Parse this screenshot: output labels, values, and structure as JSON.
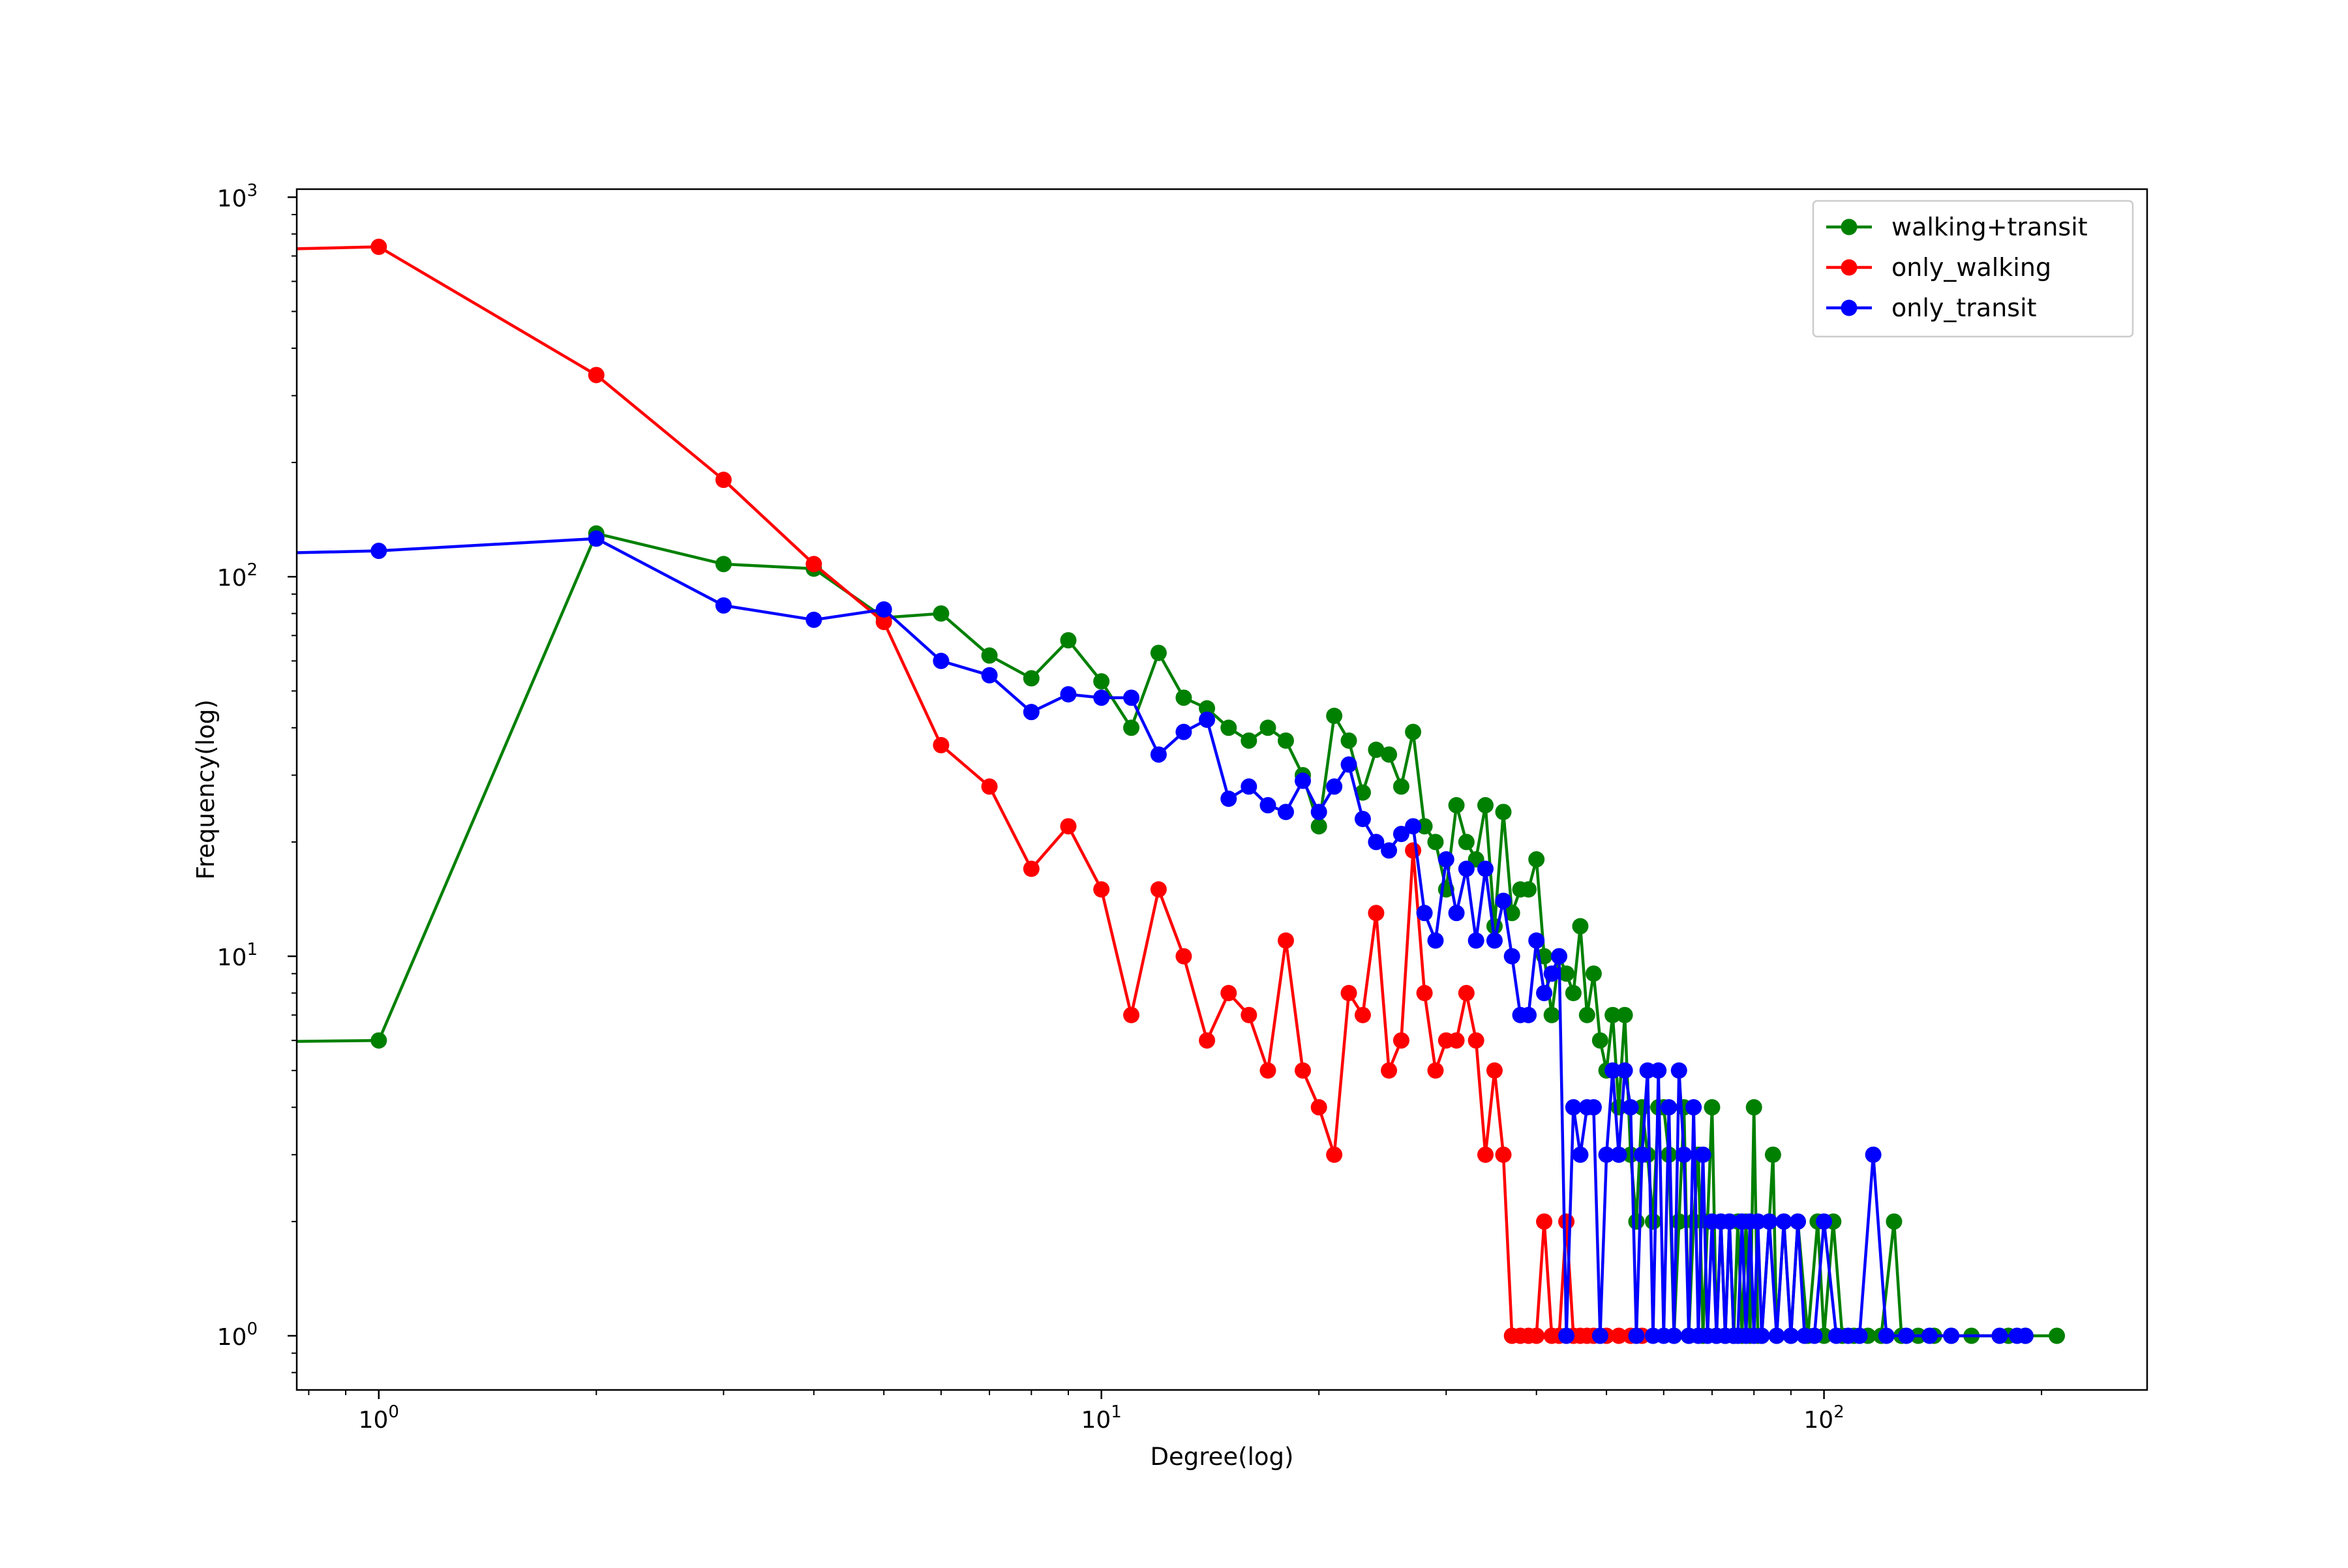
{
  "chart_data": {
    "type": "line",
    "title": "",
    "xlabel": "Degree(log)",
    "ylabel": "Frequency(log)",
    "xscale": "log",
    "yscale": "log",
    "xlim": [
      0.77,
      280
    ],
    "ylim": [
      0.72,
      1050
    ],
    "grid": false,
    "legend_position": "top-right",
    "x_ticks": [
      {
        "value": 1,
        "base": "10",
        "exp": "0"
      },
      {
        "value": 10,
        "base": "10",
        "exp": "1"
      },
      {
        "value": 100,
        "base": "10",
        "exp": "2"
      }
    ],
    "y_ticks": [
      {
        "value": 1,
        "base": "10",
        "exp": "0"
      },
      {
        "value": 10,
        "base": "10",
        "exp": "1"
      },
      {
        "value": 100,
        "base": "10",
        "exp": "2"
      },
      {
        "value": 1000,
        "base": "10",
        "exp": "3"
      }
    ],
    "series": [
      {
        "name": "walking+transit",
        "color": "#008000",
        "points": [
          [
            0,
            5
          ],
          [
            1,
            6
          ],
          [
            2,
            130
          ],
          [
            3,
            108
          ],
          [
            4,
            105
          ],
          [
            5,
            78
          ],
          [
            6,
            80
          ],
          [
            7,
            62
          ],
          [
            8,
            54
          ],
          [
            9,
            68
          ],
          [
            10,
            53
          ],
          [
            11,
            40
          ],
          [
            12,
            63
          ],
          [
            13,
            48
          ],
          [
            14,
            45
          ],
          [
            15,
            40
          ],
          [
            16,
            37
          ],
          [
            17,
            40
          ],
          [
            18,
            37
          ],
          [
            19,
            30
          ],
          [
            20,
            22
          ],
          [
            21,
            43
          ],
          [
            22,
            37
          ],
          [
            23,
            27
          ],
          [
            24,
            35
          ],
          [
            25,
            34
          ],
          [
            26,
            28
          ],
          [
            27,
            39
          ],
          [
            28,
            22
          ],
          [
            29,
            20
          ],
          [
            30,
            15
          ],
          [
            31,
            25
          ],
          [
            32,
            20
          ],
          [
            33,
            18
          ],
          [
            34,
            25
          ],
          [
            35,
            12
          ],
          [
            36,
            24
          ],
          [
            37,
            13
          ],
          [
            38,
            15
          ],
          [
            39,
            15
          ],
          [
            40,
            18
          ],
          [
            41,
            10
          ],
          [
            42,
            7
          ],
          [
            43,
            10
          ],
          [
            44,
            9
          ],
          [
            45,
            8
          ],
          [
            46,
            12
          ],
          [
            47,
            7
          ],
          [
            48,
            9
          ],
          [
            49,
            6
          ],
          [
            50,
            5
          ],
          [
            51,
            7
          ],
          [
            52,
            4
          ],
          [
            53,
            7
          ],
          [
            54,
            3
          ],
          [
            55,
            2
          ],
          [
            56,
            4
          ],
          [
            57,
            3
          ],
          [
            58,
            2
          ],
          [
            59,
            4
          ],
          [
            60,
            4
          ],
          [
            61,
            3
          ],
          [
            62,
            1
          ],
          [
            63,
            2
          ],
          [
            64,
            4
          ],
          [
            65,
            1
          ],
          [
            66,
            2
          ],
          [
            67,
            3
          ],
          [
            68,
            1
          ],
          [
            69,
            2
          ],
          [
            70,
            4
          ],
          [
            71,
            1
          ],
          [
            72,
            2
          ],
          [
            73,
            1
          ],
          [
            74,
            2
          ],
          [
            75,
            1
          ],
          [
            76,
            2
          ],
          [
            77,
            1
          ],
          [
            78,
            2
          ],
          [
            79,
            1
          ],
          [
            80,
            4
          ],
          [
            81,
            1
          ],
          [
            82,
            1
          ],
          [
            84,
            2
          ],
          [
            85,
            3
          ],
          [
            86,
            1
          ],
          [
            88,
            2
          ],
          [
            90,
            1
          ],
          [
            92,
            2
          ],
          [
            95,
            1
          ],
          [
            98,
            2
          ],
          [
            100,
            1
          ],
          [
            103,
            2
          ],
          [
            106,
            1
          ],
          [
            110,
            1
          ],
          [
            115,
            1
          ],
          [
            120,
            1
          ],
          [
            125,
            2
          ],
          [
            128,
            1
          ],
          [
            135,
            1
          ],
          [
            142,
            1
          ],
          [
            150,
            1
          ],
          [
            160,
            1
          ],
          [
            180,
            1
          ],
          [
            190,
            1
          ],
          [
            210,
            1
          ]
        ]
      },
      {
        "name": "only_walking",
        "color": "#ff0000",
        "points": [
          [
            0,
            500
          ],
          [
            1,
            740
          ],
          [
            2,
            340
          ],
          [
            3,
            180
          ],
          [
            4,
            108
          ],
          [
            5,
            76
          ],
          [
            6,
            36
          ],
          [
            7,
            28
          ],
          [
            8,
            17
          ],
          [
            9,
            22
          ],
          [
            10,
            15
          ],
          [
            11,
            7
          ],
          [
            12,
            15
          ],
          [
            13,
            10
          ],
          [
            14,
            6
          ],
          [
            15,
            8
          ],
          [
            16,
            7
          ],
          [
            17,
            5
          ],
          [
            18,
            11
          ],
          [
            19,
            5
          ],
          [
            20,
            4
          ],
          [
            21,
            3
          ],
          [
            22,
            8
          ],
          [
            23,
            7
          ],
          [
            24,
            13
          ],
          [
            25,
            5
          ],
          [
            26,
            6
          ],
          [
            27,
            19
          ],
          [
            28,
            8
          ],
          [
            29,
            5
          ],
          [
            30,
            6
          ],
          [
            31,
            6
          ],
          [
            32,
            8
          ],
          [
            33,
            6
          ],
          [
            34,
            3
          ],
          [
            35,
            5
          ],
          [
            36,
            3
          ],
          [
            37,
            1
          ],
          [
            38,
            1
          ],
          [
            39,
            1
          ],
          [
            40,
            1
          ],
          [
            41,
            2
          ],
          [
            42,
            1
          ],
          [
            43,
            1
          ],
          [
            44,
            2
          ],
          [
            45,
            1
          ],
          [
            46,
            1
          ],
          [
            47,
            1
          ],
          [
            48,
            1
          ],
          [
            50,
            1
          ],
          [
            52,
            1
          ],
          [
            54,
            1
          ],
          [
            56,
            1
          ]
        ]
      },
      {
        "name": "only_transit",
        "color": "#0000ff",
        "points": [
          [
            0,
            80
          ],
          [
            1,
            117
          ],
          [
            2,
            126
          ],
          [
            3,
            84
          ],
          [
            4,
            77
          ],
          [
            5,
            82
          ],
          [
            6,
            60
          ],
          [
            7,
            55
          ],
          [
            8,
            44
          ],
          [
            9,
            49
          ],
          [
            10,
            48
          ],
          [
            11,
            48
          ],
          [
            12,
            34
          ],
          [
            13,
            39
          ],
          [
            14,
            42
          ],
          [
            15,
            26
          ],
          [
            16,
            28
          ],
          [
            17,
            25
          ],
          [
            18,
            24
          ],
          [
            19,
            29
          ],
          [
            20,
            24
          ],
          [
            21,
            28
          ],
          [
            22,
            32
          ],
          [
            23,
            23
          ],
          [
            24,
            20
          ],
          [
            25,
            19
          ],
          [
            26,
            21
          ],
          [
            27,
            22
          ],
          [
            28,
            13
          ],
          [
            29,
            11
          ],
          [
            30,
            18
          ],
          [
            31,
            13
          ],
          [
            32,
            17
          ],
          [
            33,
            11
          ],
          [
            34,
            17
          ],
          [
            35,
            11
          ],
          [
            36,
            14
          ],
          [
            37,
            10
          ],
          [
            38,
            7
          ],
          [
            39,
            7
          ],
          [
            40,
            11
          ],
          [
            41,
            8
          ],
          [
            42,
            9
          ],
          [
            43,
            10
          ],
          [
            44,
            1
          ],
          [
            45,
            4
          ],
          [
            46,
            3
          ],
          [
            47,
            4
          ],
          [
            48,
            4
          ],
          [
            49,
            1
          ],
          [
            50,
            3
          ],
          [
            51,
            5
          ],
          [
            52,
            3
          ],
          [
            53,
            5
          ],
          [
            54,
            4
          ],
          [
            55,
            1
          ],
          [
            56,
            3
          ],
          [
            57,
            5
          ],
          [
            58,
            1
          ],
          [
            59,
            5
          ],
          [
            60,
            1
          ],
          [
            61,
            4
          ],
          [
            62,
            1
          ],
          [
            63,
            5
          ],
          [
            64,
            3
          ],
          [
            65,
            1
          ],
          [
            66,
            4
          ],
          [
            67,
            1
          ],
          [
            68,
            3
          ],
          [
            69,
            1
          ],
          [
            70,
            2
          ],
          [
            71,
            1
          ],
          [
            72,
            2
          ],
          [
            73,
            1
          ],
          [
            74,
            2
          ],
          [
            75,
            1
          ],
          [
            76,
            1
          ],
          [
            77,
            2
          ],
          [
            78,
            1
          ],
          [
            79,
            2
          ],
          [
            80,
            1
          ],
          [
            81,
            2
          ],
          [
            82,
            1
          ],
          [
            84,
            2
          ],
          [
            86,
            1
          ],
          [
            88,
            2
          ],
          [
            90,
            1
          ],
          [
            92,
            2
          ],
          [
            94,
            1
          ],
          [
            97,
            1
          ],
          [
            100,
            2
          ],
          [
            104,
            1
          ],
          [
            108,
            1
          ],
          [
            112,
            1
          ],
          [
            117,
            3
          ],
          [
            122,
            1
          ],
          [
            130,
            1
          ],
          [
            140,
            1
          ],
          [
            150,
            1
          ],
          [
            175,
            1
          ],
          [
            185,
            1
          ],
          [
            190,
            1
          ]
        ]
      }
    ]
  }
}
